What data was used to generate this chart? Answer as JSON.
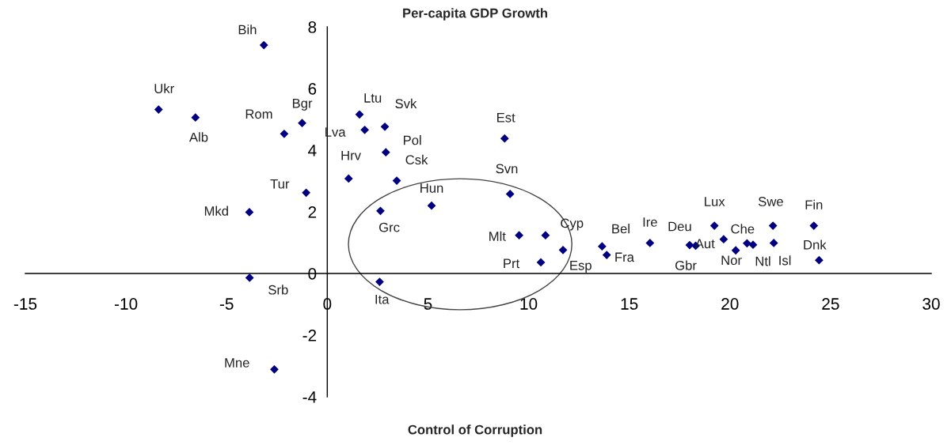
{
  "chart_data": {
    "type": "scatter",
    "title": "Per-capita GDP Growth",
    "xlabel": "Control of Corruption",
    "xlim": [
      -15,
      30
    ],
    "ylim": [
      -4,
      8
    ],
    "xticks": [
      -15,
      -10,
      -5,
      0,
      5,
      10,
      15,
      20,
      25,
      30
    ],
    "yticks": [
      -4,
      -2,
      0,
      2,
      4,
      6,
      8
    ],
    "grid": false,
    "legend": false,
    "marker": "diamond",
    "series": [
      {
        "color": "#000080",
        "x": [
          -3.15,
          -8.38,
          -6.55,
          -2.14,
          -1.25,
          -1.05,
          -3.87,
          1.6,
          1.86,
          2.86,
          2.91,
          1.06,
          3.45,
          5.18,
          2.64,
          8.81,
          9.08,
          9.53,
          10.84,
          11.71,
          10.61,
          2.6,
          13.65,
          13.88,
          16.03,
          18.0,
          18.3,
          19.23,
          19.69,
          20.29,
          20.85,
          21.15,
          22.14,
          22.18,
          24.17,
          24.43,
          -3.86,
          -2.63
        ],
        "values": [
          7.41,
          5.32,
          5.06,
          4.53,
          4.88,
          2.62,
          1.99,
          5.16,
          4.66,
          4.76,
          3.93,
          3.08,
          3.01,
          2.2,
          2.03,
          4.38,
          2.58,
          1.24,
          1.24,
          0.76,
          0.36,
          -0.27,
          0.88,
          0.6,
          0.99,
          0.92,
          0.9,
          1.55,
          1.11,
          0.75,
          0.98,
          0.93,
          1.55,
          0.99,
          1.55,
          0.43,
          -0.14,
          -3.11
        ]
      }
    ],
    "annotations": [
      {
        "text": "Bih",
        "x": -3.15,
        "y": 7.41
      },
      {
        "text": "Ukr",
        "x": -8.38,
        "y": 5.32
      },
      {
        "text": "Alb",
        "x": -6.55,
        "y": 5.06
      },
      {
        "text": "Rom",
        "x": -2.14,
        "y": 4.53
      },
      {
        "text": "Bgr",
        "x": -1.25,
        "y": 4.88
      },
      {
        "text": "Tur",
        "x": -1.05,
        "y": 2.62
      },
      {
        "text": "Mkd",
        "x": -3.87,
        "y": 1.99
      },
      {
        "text": "Ltu",
        "x": 1.6,
        "y": 5.16
      },
      {
        "text": "Lva",
        "x": 1.86,
        "y": 4.66
      },
      {
        "text": "Svk",
        "x": 2.86,
        "y": 4.76
      },
      {
        "text": "Pol",
        "x": 2.91,
        "y": 3.93
      },
      {
        "text": "Hrv",
        "x": 1.06,
        "y": 3.08
      },
      {
        "text": "Csk",
        "x": 3.45,
        "y": 3.01
      },
      {
        "text": "Hun",
        "x": 5.18,
        "y": 2.2
      },
      {
        "text": "Grc",
        "x": 2.64,
        "y": 2.03
      },
      {
        "text": "Est",
        "x": 8.81,
        "y": 4.38
      },
      {
        "text": "Svn",
        "x": 9.08,
        "y": 2.58
      },
      {
        "text": "Mlt",
        "x": 9.53,
        "y": 1.24
      },
      {
        "text": "Cyp",
        "x": 10.84,
        "y": 1.24
      },
      {
        "text": "Esp",
        "x": 11.71,
        "y": 0.76
      },
      {
        "text": "Prt",
        "x": 10.61,
        "y": 0.36
      },
      {
        "text": "Ita",
        "x": 2.6,
        "y": -0.27
      },
      {
        "text": "Bel",
        "x": 13.65,
        "y": 0.88
      },
      {
        "text": "Fra",
        "x": 13.88,
        "y": 0.6
      },
      {
        "text": "Ire",
        "x": 16.03,
        "y": 0.99
      },
      {
        "text": "Deu",
        "x": 18.0,
        "y": 0.92
      },
      {
        "text": "Gbr",
        "x": 18.3,
        "y": 0.9
      },
      {
        "text": "Lux",
        "x": 19.23,
        "y": 1.55
      },
      {
        "text": "Aut",
        "x": 19.69,
        "y": 1.11
      },
      {
        "text": "Nor",
        "x": 20.29,
        "y": 0.75
      },
      {
        "text": "Che",
        "x": 20.85,
        "y": 0.98
      },
      {
        "text": "Ntl",
        "x": 21.15,
        "y": 0.93
      },
      {
        "text": "Swe",
        "x": 22.14,
        "y": 1.55
      },
      {
        "text": "Isl",
        "x": 22.18,
        "y": 0.99
      },
      {
        "text": "Fin",
        "x": 24.17,
        "y": 1.55
      },
      {
        "text": "Dnk",
        "x": 24.43,
        "y": 0.43
      },
      {
        "text": "Srb",
        "x": -3.86,
        "y": -0.14
      },
      {
        "text": "Mne",
        "x": -2.63,
        "y": -3.11
      }
    ]
  }
}
